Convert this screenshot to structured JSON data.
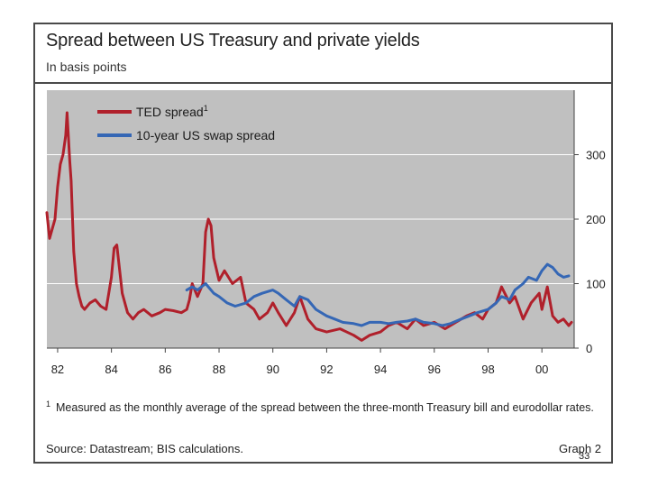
{
  "chart_data": {
    "type": "line",
    "title": "Spread between US Treasury and private yields",
    "subtitle": "In basis points",
    "xlabel": "",
    "ylabel": "",
    "xlim": [
      1981.6,
      2001.2
    ],
    "ylim": [
      0,
      400
    ],
    "x_ticks": [
      1982,
      1984,
      1986,
      1988,
      1990,
      1992,
      1994,
      1996,
      1998,
      2000
    ],
    "x_tick_labels": [
      "82",
      "84",
      "86",
      "88",
      "90",
      "92",
      "94",
      "96",
      "98",
      "00"
    ],
    "y_ticks": [
      0,
      100,
      200,
      300
    ],
    "y_tick_labels": [
      "0",
      "100",
      "200",
      "300"
    ],
    "legend_position": "top-left",
    "series": [
      {
        "name": "TED spread",
        "legend_label": "TED spread",
        "legend_marker": "1",
        "color": "#b0202b",
        "x": [
          1981.6,
          1981.7,
          1981.8,
          1981.9,
          1982.0,
          1982.1,
          1982.2,
          1982.3,
          1982.35,
          1982.45,
          1982.5,
          1982.6,
          1982.7,
          1982.8,
          1982.9,
          1983.0,
          1983.2,
          1983.4,
          1983.6,
          1983.8,
          1984.0,
          1984.1,
          1984.2,
          1984.4,
          1984.6,
          1984.8,
          1985.0,
          1985.2,
          1985.5,
          1985.8,
          1986.0,
          1986.3,
          1986.6,
          1986.8,
          1986.9,
          1987.0,
          1987.2,
          1987.4,
          1987.5,
          1987.6,
          1987.7,
          1987.8,
          1988.0,
          1988.2,
          1988.5,
          1988.8,
          1989.0,
          1989.3,
          1989.5,
          1989.8,
          1990.0,
          1990.2,
          1990.5,
          1990.8,
          1991.0,
          1991.3,
          1991.6,
          1992.0,
          1992.5,
          1993.0,
          1993.3,
          1993.6,
          1994.0,
          1994.3,
          1994.6,
          1995.0,
          1995.3,
          1995.6,
          1996.0,
          1996.4,
          1996.8,
          1997.2,
          1997.5,
          1997.8,
          1998.0,
          1998.3,
          1998.5,
          1998.8,
          1999.0,
          1999.3,
          1999.6,
          1999.9,
          2000.0,
          2000.2,
          2000.4,
          2000.6,
          2000.8,
          2001.0,
          2001.1
        ],
        "values": [
          210,
          170,
          185,
          200,
          250,
          285,
          300,
          330,
          365,
          290,
          260,
          150,
          100,
          80,
          65,
          60,
          70,
          75,
          65,
          60,
          110,
          155,
          160,
          85,
          55,
          45,
          55,
          60,
          50,
          55,
          60,
          58,
          55,
          60,
          75,
          100,
          80,
          100,
          180,
          200,
          190,
          140,
          105,
          120,
          100,
          110,
          70,
          60,
          45,
          55,
          70,
          55,
          35,
          55,
          80,
          45,
          30,
          25,
          30,
          20,
          12,
          20,
          25,
          35,
          40,
          30,
          45,
          35,
          40,
          30,
          40,
          50,
          55,
          45,
          60,
          70,
          95,
          70,
          80,
          45,
          70,
          85,
          60,
          95,
          50,
          40,
          45,
          35,
          40
        ]
      },
      {
        "name": "10-year US swap spread",
        "legend_label": "10-year US swap spread",
        "color": "#3567b5",
        "x": [
          1986.8,
          1987.0,
          1987.2,
          1987.5,
          1987.8,
          1988.0,
          1988.3,
          1988.6,
          1989.0,
          1989.3,
          1989.6,
          1990.0,
          1990.2,
          1990.5,
          1990.8,
          1991.0,
          1991.3,
          1991.6,
          1992.0,
          1992.3,
          1992.6,
          1993.0,
          1993.3,
          1993.6,
          1994.0,
          1994.3,
          1994.6,
          1995.0,
          1995.3,
          1995.6,
          1996.0,
          1996.3,
          1996.6,
          1997.0,
          1997.3,
          1997.6,
          1998.0,
          1998.3,
          1998.5,
          1998.8,
          1999.0,
          1999.3,
          1999.5,
          1999.8,
          2000.0,
          2000.2,
          2000.4,
          2000.6,
          2000.8,
          2001.0
        ],
        "values": [
          90,
          95,
          90,
          100,
          85,
          80,
          70,
          65,
          70,
          80,
          85,
          90,
          85,
          75,
          65,
          80,
          75,
          60,
          50,
          45,
          40,
          38,
          35,
          40,
          40,
          38,
          40,
          42,
          45,
          40,
          38,
          35,
          38,
          45,
          50,
          55,
          60,
          70,
          80,
          75,
          90,
          100,
          110,
          105,
          120,
          130,
          125,
          115,
          110,
          112
        ]
      }
    ],
    "footnote_marker": "1",
    "footnote": "Measured as the monthly average of the spread between the three-month Treasury bill and eurodollar rates.",
    "source": "Source: Datastream; BIS calculations.",
    "graph_label": "Graph 2",
    "plot_background": "#c0c0c0",
    "grid_color": "#ffffff"
  },
  "slide_number": "33"
}
